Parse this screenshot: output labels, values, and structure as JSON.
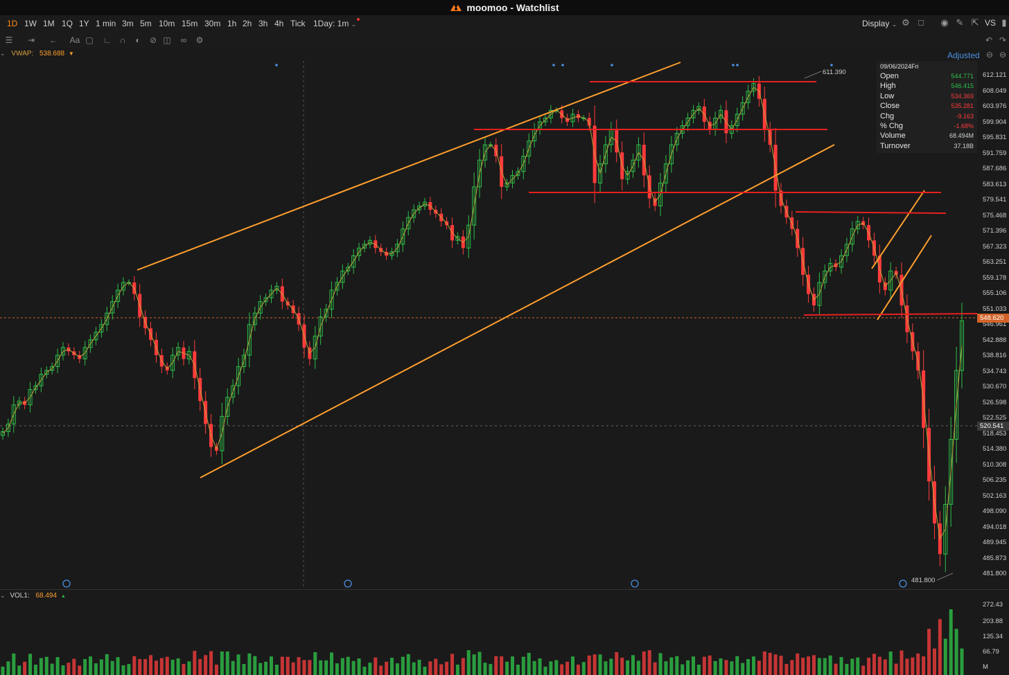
{
  "window": {
    "title": "moomoo - Watchlist"
  },
  "timeframes": [
    {
      "label": "1D",
      "active": true
    },
    {
      "label": "1W"
    },
    {
      "label": "1M"
    },
    {
      "label": "1Q"
    },
    {
      "label": "1Y"
    },
    {
      "label": "1 min"
    },
    {
      "label": "3m"
    },
    {
      "label": "5m"
    },
    {
      "label": "10m"
    },
    {
      "label": "15m"
    },
    {
      "label": "30m"
    },
    {
      "label": "1h"
    },
    {
      "label": "2h"
    },
    {
      "label": "3h"
    },
    {
      "label": "4h"
    },
    {
      "label": "Tick"
    },
    {
      "label": "1Day: 1m"
    }
  ],
  "toolbar": {
    "display_label": "Display",
    "vs_label": "VS"
  },
  "drawing_tools": {
    "text_tool": "Aa"
  },
  "indicator": {
    "vwap_label": "VWAP:",
    "vwap_value": "538.688"
  },
  "adjusted_label": "Adjusted",
  "info_panel": {
    "date": "09/06/2024Fri",
    "rows": [
      {
        "label": "Open",
        "value": "544.771",
        "color": "#2fbf4a"
      },
      {
        "label": "High",
        "value": "546.415",
        "color": "#2fbf4a"
      },
      {
        "label": "Low",
        "value": "534.369",
        "color": "#ff3b3b"
      },
      {
        "label": "Close",
        "value": "535.281",
        "color": "#ff3b3b"
      },
      {
        "label": "Chg",
        "value": "-9.163",
        "color": "#ff3b3b"
      },
      {
        "label": "% Chg",
        "value": "-1.68%",
        "color": "#ff3b3b"
      },
      {
        "label": "Volume",
        "value": "68.494M",
        "color": "#cfcfcf"
      },
      {
        "label": "Turnover",
        "value": "37.18B",
        "color": "#cfcfcf"
      }
    ]
  },
  "price_axis": {
    "labels": [
      "612.121",
      "608.049",
      "603.976",
      "599.904",
      "595.831",
      "591.759",
      "587.686",
      "583.613",
      "579.541",
      "575.468",
      "571.396",
      "567.323",
      "563.251",
      "559.178",
      "555.106",
      "551.033",
      "546.961",
      "542.888",
      "538.816",
      "534.743",
      "530.670",
      "526.598",
      "522.525",
      "518.453",
      "514.380",
      "510.308",
      "506.235",
      "502.163",
      "498.090",
      "494.018",
      "489.945",
      "485.873",
      "481.800"
    ],
    "current_tag": "548.620",
    "crosshair_tag": "520.541"
  },
  "annotations": {
    "high_label": "611.390",
    "low_label": "481.800"
  },
  "volume": {
    "label": "VOL1:",
    "value": "68.494",
    "axis_labels": [
      "272.43",
      "203.88",
      "135.34",
      "66.79",
      "M"
    ]
  },
  "chart_data": {
    "type": "candlestick",
    "y_range": [
      481.8,
      612.121
    ],
    "closes": [
      519,
      521,
      526,
      527,
      526,
      530,
      531,
      534,
      535,
      536,
      539,
      541,
      540,
      539,
      538,
      541,
      543,
      545,
      547,
      550,
      553,
      556,
      558,
      558,
      555,
      549,
      546,
      543,
      539,
      536,
      535,
      539,
      541,
      538,
      540,
      533,
      527,
      521,
      515,
      514,
      523,
      528,
      531,
      536,
      539,
      547,
      550,
      553,
      554,
      556,
      557,
      553,
      552,
      550,
      547,
      541,
      538,
      544,
      549,
      551,
      556,
      558,
      561,
      562,
      565,
      567,
      568,
      569,
      567,
      566,
      565,
      566,
      568,
      572,
      575,
      577,
      578,
      579,
      577,
      576,
      574,
      573,
      569,
      570,
      567,
      573,
      583,
      590,
      594,
      594,
      591,
      583,
      584,
      586,
      587,
      591,
      595,
      598,
      600,
      601,
      603,
      603,
      601,
      600,
      602,
      601,
      601,
      599,
      584,
      589,
      594,
      598,
      592,
      585,
      587,
      590,
      594,
      586,
      580,
      578,
      584,
      589,
      594,
      597,
      599,
      601,
      603,
      604,
      600,
      598,
      601,
      603,
      597,
      599,
      602,
      605,
      608,
      610,
      606,
      598,
      594,
      582,
      578,
      575,
      572,
      567,
      560,
      555,
      552,
      558,
      561,
      563,
      562,
      565,
      568,
      572,
      574,
      573,
      569,
      565,
      558,
      556,
      561,
      560,
      552,
      545,
      540,
      535,
      520,
      506,
      495,
      487,
      500,
      517,
      535,
      548
    ]
  },
  "tooltip_palette": {
    "up": "#2fbf4a",
    "down": "#ff3b3b",
    "orange": "#ff9f2e",
    "red_line": "#e82020"
  }
}
